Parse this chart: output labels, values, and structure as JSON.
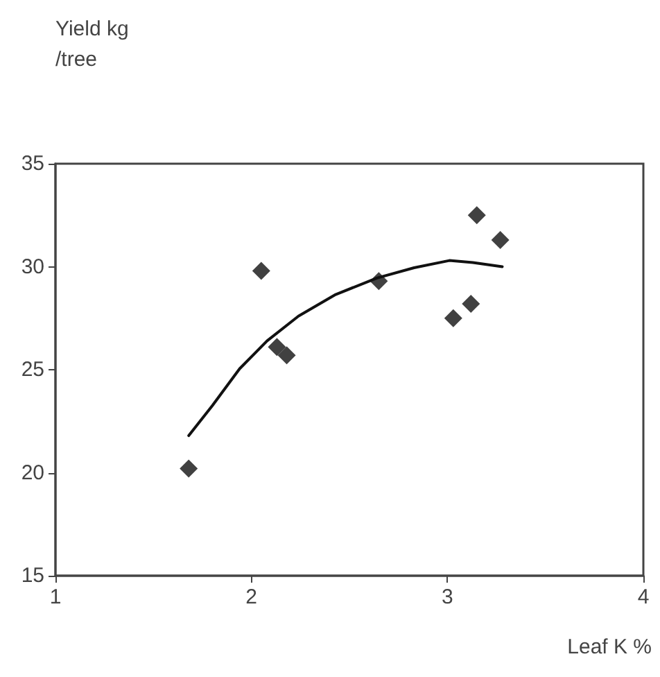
{
  "chart_data": {
    "type": "scatter",
    "ylabel": "Yield kg/tree",
    "xlabel": "Leaf K %",
    "xlim": [
      1,
      4
    ],
    "xticks": [
      1,
      2,
      3,
      4
    ],
    "ylim": [
      15,
      35
    ],
    "yticks": [
      15,
      20,
      25,
      30,
      35
    ],
    "grid": false,
    "marker": "diamond",
    "series": [
      {
        "color": "#111111",
        "x": [
          1.68,
          2.05,
          2.13,
          2.18,
          2.65,
          3.03,
          3.12,
          3.15,
          3.27
        ],
        "values": [
          20.2,
          29.8,
          26.1,
          25.7,
          29.3,
          27.5,
          28.2,
          32.5,
          31.3
        ]
      },
      {
        "type": "line",
        "color": "#111111",
        "marker": "none",
        "line_style": "solid",
        "x": [
          1.68,
          1.8,
          1.94,
          2.08,
          2.24,
          2.43,
          2.64,
          2.83,
          3.01,
          3.13,
          3.28
        ],
        "values": [
          21.8,
          23.25,
          25.05,
          26.4,
          27.6,
          28.65,
          29.45,
          29.95,
          30.3,
          30.2,
          30.0
        ]
      }
    ]
  }
}
